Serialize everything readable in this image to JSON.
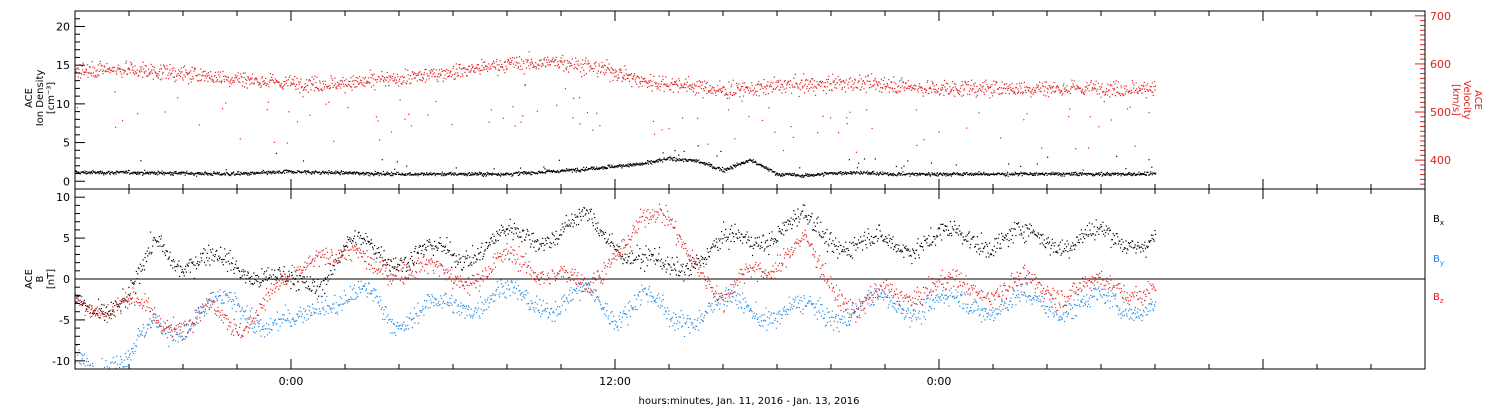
{
  "chart_data": [
    {
      "type": "scatter",
      "panel": "ion-density-velocity",
      "ylabel_left": [
        "ACE",
        "Ion Density",
        "[cm⁻³]"
      ],
      "ylabel_right": [
        "ACE",
        "Velocity",
        "[km/s]"
      ],
      "ylim_left": [
        -1,
        22
      ],
      "ylim_right": [
        340,
        710
      ],
      "yticks_left": [
        "0",
        "5",
        "10",
        "15",
        "20"
      ],
      "yticks_right": [
        "400",
        "500",
        "600",
        "700"
      ],
      "left_axis_color": "#000000",
      "right_axis_color": "#e02020",
      "series": [
        {
          "axis": "left",
          "color": "#000000",
          "trend_hours": [
            -6,
            -2,
            0,
            4,
            8,
            10,
            11,
            12,
            13,
            14,
            15,
            16,
            17,
            18,
            19,
            20,
            21,
            22,
            23.5
          ],
          "trend_values": [
            1.2,
            1.0,
            1.3,
            1.0,
            1.0,
            1.4,
            1.7,
            2.0,
            2.3,
            3.0,
            2.7,
            1.5,
            2.8,
            1.0,
            0.8,
            1.1,
            1.2,
            1.0,
            1.0
          ]
        },
        {
          "axis": "right",
          "color": "#e02020",
          "trend_hours": [
            -6,
            -4,
            -2,
            0,
            2,
            4,
            6,
            8,
            10,
            11,
            12,
            13,
            14,
            15,
            16,
            18,
            20,
            22,
            23.5
          ],
          "trend_values": [
            590,
            580,
            570,
            560,
            560,
            570,
            585,
            600,
            605,
            595,
            585,
            565,
            560,
            555,
            545,
            555,
            560,
            560,
            550
          ]
        }
      ]
    },
    {
      "type": "scatter",
      "panel": "magnetic-field",
      "ylabel": [
        "ACE",
        "B",
        "[nT]"
      ],
      "ylim": [
        -11,
        11
      ],
      "yticks": [
        "-10",
        "-5",
        "0",
        "5",
        "10"
      ],
      "zero_line": true,
      "series": [
        {
          "name": "Bx",
          "label_base": "B",
          "label_sub": "x",
          "color": "#000000",
          "trend_hours": [
            -6,
            -5,
            -4,
            -2,
            0,
            1,
            2,
            4,
            6,
            8,
            10,
            11,
            12,
            13,
            14,
            15,
            16,
            18,
            19,
            20,
            22,
            23.5
          ],
          "trend_values": [
            -3,
            5,
            2,
            2,
            -1,
            0,
            4,
            3,
            3,
            5,
            6,
            7,
            5,
            2,
            1,
            3,
            4,
            6,
            7,
            5,
            4,
            5
          ]
        },
        {
          "name": "By",
          "label_base": "B",
          "label_sub": "y",
          "color": "#1e88e5",
          "trend_hours": [
            -6,
            -5,
            -4,
            -3,
            -2,
            -1,
            0,
            1,
            2,
            3,
            4,
            6,
            8,
            10,
            11,
            12,
            13,
            14,
            16,
            18,
            20,
            22,
            23.5
          ],
          "trend_values": [
            -10,
            -5,
            -6,
            -4,
            -2,
            -6,
            -6,
            -2,
            -3,
            -2,
            -5,
            -3,
            -2,
            -3,
            -2,
            -4,
            -2,
            -5,
            -3,
            -4,
            -4,
            -3,
            -3
          ]
        },
        {
          "name": "Bz",
          "label_base": "B",
          "label_sub": "z",
          "color": "#e02020",
          "trend_hours": [
            -6,
            -5,
            -4,
            -3,
            -2,
            -1,
            0,
            1,
            2,
            3,
            4,
            6,
            8,
            10,
            11,
            12,
            13,
            14,
            15,
            16,
            17,
            18,
            19,
            20,
            21,
            22,
            23.5
          ],
          "trend_values": [
            -3,
            -5,
            -5,
            -4,
            -6,
            -2,
            -1,
            4,
            3,
            1,
            2,
            0,
            2,
            1,
            -2,
            4,
            7,
            7,
            3,
            -4,
            2,
            2,
            4,
            0,
            -4,
            -2,
            -1
          ]
        }
      ]
    }
  ],
  "xaxis": {
    "xlabel": "hours:minutes, Jan. 11, 2016 - Jan. 13, 2016",
    "range_hours": [
      -8,
      42
    ],
    "data_end_hour": 32,
    "ticks": [
      {
        "hour": 0,
        "label": "0:00"
      },
      {
        "hour": 12,
        "label": "12:00"
      },
      {
        "hour": 24,
        "label": "0:00"
      }
    ]
  }
}
